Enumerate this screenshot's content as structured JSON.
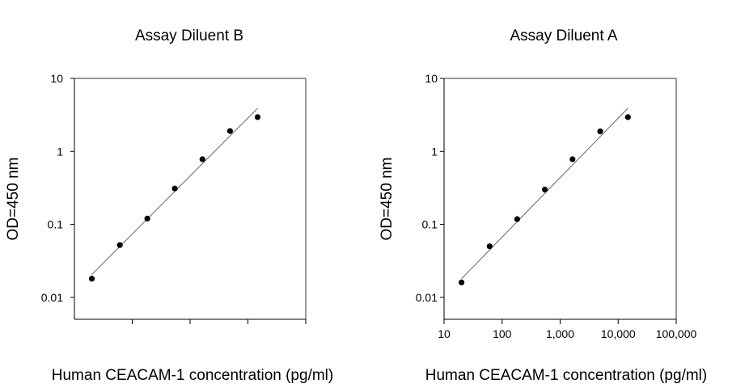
{
  "chart_data": [
    {
      "type": "scatter",
      "title": "Assay Diluent B",
      "xlabel": "Human CEACAM-1 concentration (pg/ml)",
      "ylabel": "OD=450 nm",
      "x_scale": "log",
      "y_scale": "log",
      "xlim": [
        10,
        100000
      ],
      "ylim": [
        0.005,
        10
      ],
      "x_tick_values": [
        100,
        1000,
        10000,
        100000
      ],
      "x_tick_labels": [],
      "y_tick_values": [
        0.01,
        0.1,
        1,
        10
      ],
      "y_tick_labels": [
        "0.01",
        "0.1",
        "1",
        "10"
      ],
      "grid": false,
      "legend": "none",
      "series": [
        {
          "x": [
            20,
            61,
            182,
            545,
            1635,
            4904,
            14712
          ],
          "y": [
            0.018,
            0.052,
            0.12,
            0.31,
            0.78,
            1.9,
            2.95
          ]
        }
      ],
      "fit_line": {
        "x": [
          20,
          14712
        ],
        "y": [
          0.0205,
          3.9
        ]
      }
    },
    {
      "type": "scatter",
      "title": "Assay Diluent A",
      "xlabel": "Human CEACAM-1 concentration (pg/ml)",
      "ylabel": "OD=450 nm",
      "x_scale": "log",
      "y_scale": "log",
      "xlim": [
        10,
        100000
      ],
      "ylim": [
        0.005,
        10
      ],
      "x_tick_values": [
        10,
        100,
        1000,
        10000,
        100000
      ],
      "x_tick_labels": [
        "10",
        "100",
        "1,000",
        "10,000",
        "100,000"
      ],
      "y_tick_values": [
        0.01,
        0.1,
        1,
        10
      ],
      "y_tick_labels": [
        "0.01",
        "0.1",
        "1",
        "10"
      ],
      "grid": false,
      "legend": "none",
      "series": [
        {
          "x": [
            20,
            61,
            182,
            545,
            1635,
            4904,
            14712
          ],
          "y": [
            0.016,
            0.05,
            0.118,
            0.3,
            0.78,
            1.88,
            2.95
          ]
        }
      ],
      "fit_line": {
        "x": [
          20,
          14712
        ],
        "y": [
          0.018,
          3.9
        ]
      }
    }
  ]
}
